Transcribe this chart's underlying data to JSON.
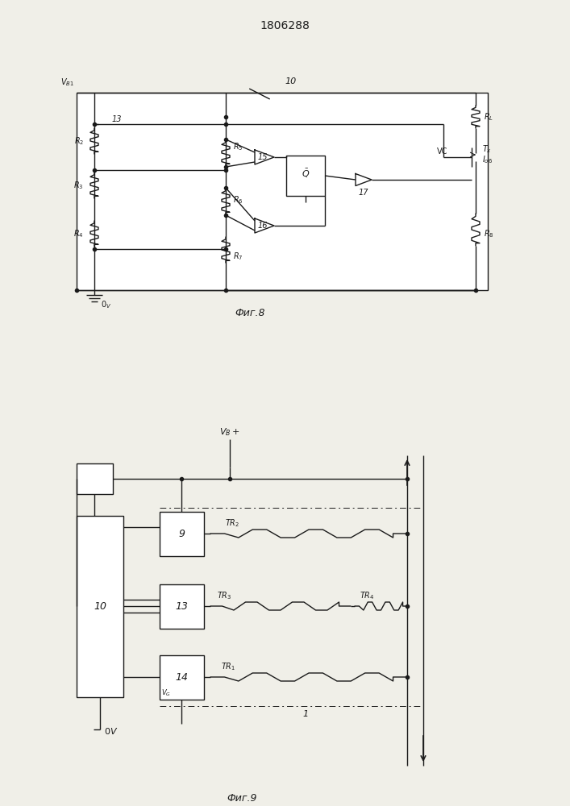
{
  "title": "1806288",
  "fig8_label": "Фиг.8",
  "fig9_label": "Фиг.9",
  "bg_color": "#f0efe8",
  "line_color": "#1a1a1a",
  "fig_width": 7.07,
  "fig_height": 10.0
}
